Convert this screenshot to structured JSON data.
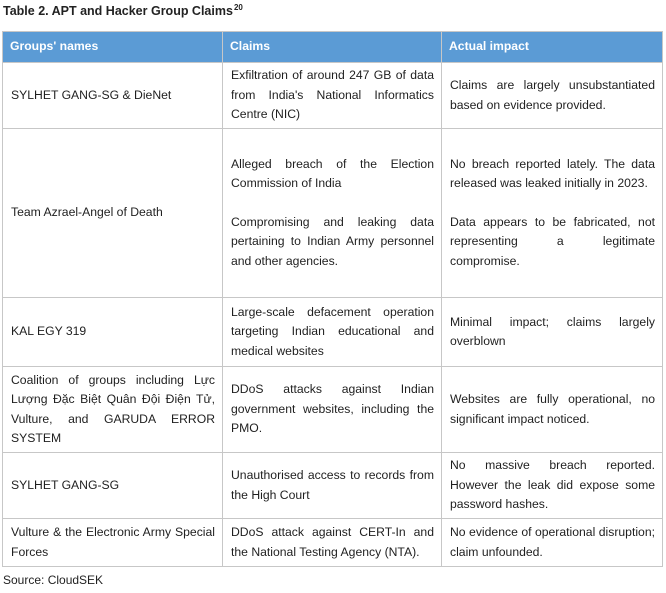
{
  "title": "Table 2. APT  and Hacker  Group Claims",
  "title_ref": "20",
  "header_color": "#5b9bd5",
  "columns": [
    "Groups' names",
    "Claims",
    "Actual impact"
  ],
  "rows": [
    {
      "group": "SYLHET GANG-SG & DieNet",
      "claims": [
        "Exfiltration of around 247 GB of data from India's National Informatics Centre (NIC)"
      ],
      "impacts": [
        "Claims are largely unsubstantiated based on evidence provided."
      ]
    },
    {
      "group": "Team Azrael-Angel of Death",
      "claims": [
        "Alleged breach of the Election Commission of India",
        "Compromising and leaking data pertaining to Indian Army personnel and other agencies."
      ],
      "impacts": [
        "No breach reported lately. The data released was leaked initially in 2023.",
        "Data appears to be fabricated, not representing a legitimate compromise."
      ]
    },
    {
      "group": "KAL EGY 319",
      "claims": [
        "Large-scale defacement operation targeting Indian educational and medical websites"
      ],
      "impacts": [
        "Minimal impact; claims largely overblown"
      ]
    },
    {
      "group": "Coalition of groups including Lực Lượng Đặc Biệt Quân Đội Điện Tử, Vulture, and GARUDA ERROR SYSTEM",
      "claims": [
        "DDoS attacks against Indian government websites, including the PMO."
      ],
      "impacts": [
        "Websites are fully operational, no significant impact noticed."
      ]
    },
    {
      "group": "SYLHET GANG-SG",
      "claims": [
        "Unauthorised access to records from the High Court"
      ],
      "impacts": [
        "No massive breach reported. However the leak did expose some password hashes."
      ]
    },
    {
      "group": "Vulture & the Electronic Army Special Forces",
      "claims": [
        "DDoS attack against CERT-In and the National Testing Agency (NTA)."
      ],
      "impacts": [
        "No evidence of operational disruption; claim unfounded."
      ]
    }
  ],
  "source": "Source: CloudSEK"
}
